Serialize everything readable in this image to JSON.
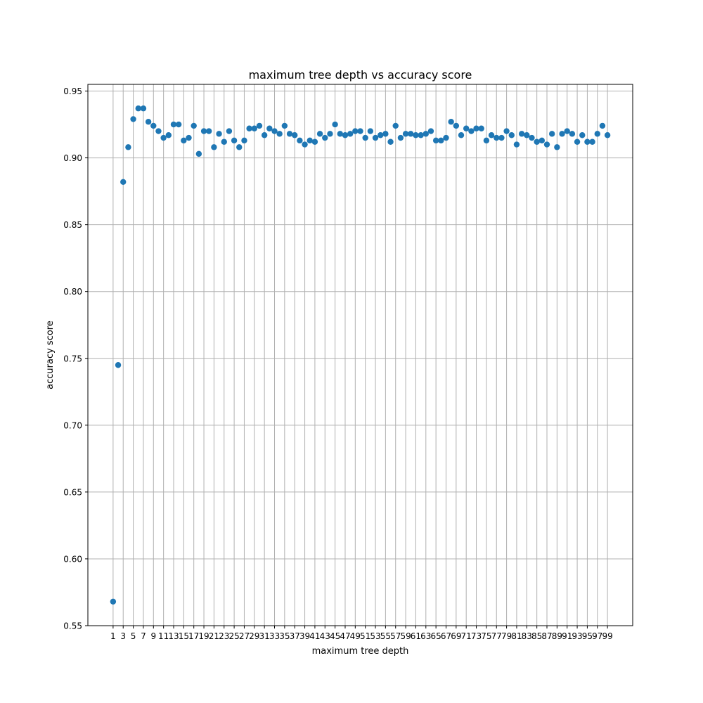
{
  "chart_data": {
    "type": "scatter",
    "title": "maximum tree depth vs accuracy score",
    "xlabel": "maximum tree depth",
    "ylabel": "accuracy score",
    "xlim": [
      -4,
      104
    ],
    "ylim": [
      0.55,
      0.955
    ],
    "xticks": [
      1,
      3,
      5,
      7,
      9,
      11,
      13,
      15,
      17,
      19,
      21,
      23,
      25,
      27,
      29,
      31,
      33,
      35,
      37,
      39,
      41,
      43,
      45,
      47,
      49,
      51,
      53,
      55,
      57,
      59,
      61,
      63,
      65,
      67,
      69,
      71,
      73,
      75,
      77,
      79,
      81,
      83,
      85,
      87,
      89,
      91,
      93,
      95,
      97,
      99
    ],
    "yticks": [
      "0.55",
      "0.60",
      "0.65",
      "0.70",
      "0.75",
      "0.80",
      "0.85",
      "0.90",
      "0.95"
    ],
    "grid": true,
    "marker_color": "#1f77b4",
    "x": [
      1,
      2,
      3,
      4,
      5,
      6,
      7,
      8,
      9,
      10,
      11,
      12,
      13,
      14,
      15,
      16,
      17,
      18,
      19,
      20,
      21,
      22,
      23,
      24,
      25,
      26,
      27,
      28,
      29,
      30,
      31,
      32,
      33,
      34,
      35,
      36,
      37,
      38,
      39,
      40,
      41,
      42,
      43,
      44,
      45,
      46,
      47,
      48,
      49,
      50,
      51,
      52,
      53,
      54,
      55,
      56,
      57,
      58,
      59,
      60,
      61,
      62,
      63,
      64,
      65,
      66,
      67,
      68,
      69,
      70,
      71,
      72,
      73,
      74,
      75,
      76,
      77,
      78,
      79,
      80,
      81,
      82,
      83,
      84,
      85,
      86,
      87,
      88,
      89,
      90,
      91,
      92,
      93,
      94,
      95,
      96,
      97,
      98,
      99
    ],
    "values": [
      0.568,
      0.745,
      0.882,
      0.908,
      0.929,
      0.937,
      0.937,
      0.927,
      0.924,
      0.92,
      0.915,
      0.917,
      0.925,
      0.925,
      0.913,
      0.915,
      0.924,
      0.903,
      0.92,
      0.92,
      0.908,
      0.918,
      0.912,
      0.92,
      0.913,
      0.908,
      0.913,
      0.922,
      0.922,
      0.924,
      0.917,
      0.922,
      0.92,
      0.918,
      0.924,
      0.918,
      0.917,
      0.913,
      0.91,
      0.913,
      0.912,
      0.918,
      0.915,
      0.918,
      0.925,
      0.918,
      0.917,
      0.918,
      0.92,
      0.92,
      0.915,
      0.92,
      0.915,
      0.917,
      0.918,
      0.912,
      0.924,
      0.915,
      0.918,
      0.918,
      0.917,
      0.917,
      0.918,
      0.92,
      0.913,
      0.913,
      0.915,
      0.927,
      0.924,
      0.917,
      0.922,
      0.92,
      0.922,
      0.922,
      0.913,
      0.917,
      0.915,
      0.915,
      0.92,
      0.917,
      0.91,
      0.918,
      0.917,
      0.915,
      0.912,
      0.913,
      0.91,
      0.918,
      0.908,
      0.918,
      0.92,
      0.918,
      0.912,
      0.917,
      0.912,
      0.912,
      0.918,
      0.924,
      0.917
    ]
  }
}
